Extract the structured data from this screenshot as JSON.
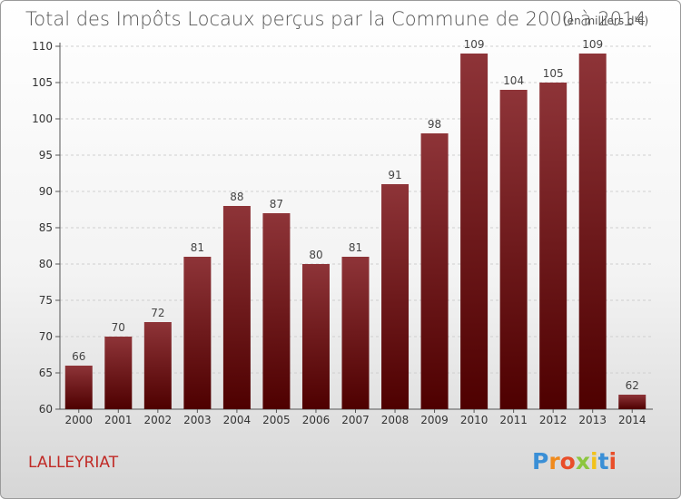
{
  "chart_data": {
    "type": "bar",
    "title": "Total des Impôts Locaux perçus par la Commune de 2000 à 2014",
    "subtitle": "(en milliers d'€)",
    "categories": [
      "2000",
      "2001",
      "2002",
      "2003",
      "2004",
      "2005",
      "2006",
      "2007",
      "2008",
      "2009",
      "2010",
      "2011",
      "2012",
      "2013",
      "2014"
    ],
    "values": [
      66,
      70,
      72,
      81,
      88,
      87,
      80,
      81,
      91,
      98,
      109,
      104,
      105,
      109,
      62
    ],
    "ylim": [
      60,
      110
    ],
    "yticks": [
      60,
      65,
      70,
      75,
      80,
      85,
      90,
      95,
      100,
      105,
      110
    ],
    "xlabel": "",
    "ylabel": "",
    "grid": true,
    "bar_color": "#8b1a1a"
  },
  "commune": "LALLEYRIAT",
  "brand": {
    "letters": [
      "P",
      "r",
      "o",
      "x",
      "i",
      "t",
      "i"
    ],
    "colors": [
      "#3a8fd6",
      "#f08a1c",
      "#e94e2a",
      "#8cc63f",
      "#f2c21b",
      "#3a8fd6",
      "#e94e2a"
    ]
  }
}
